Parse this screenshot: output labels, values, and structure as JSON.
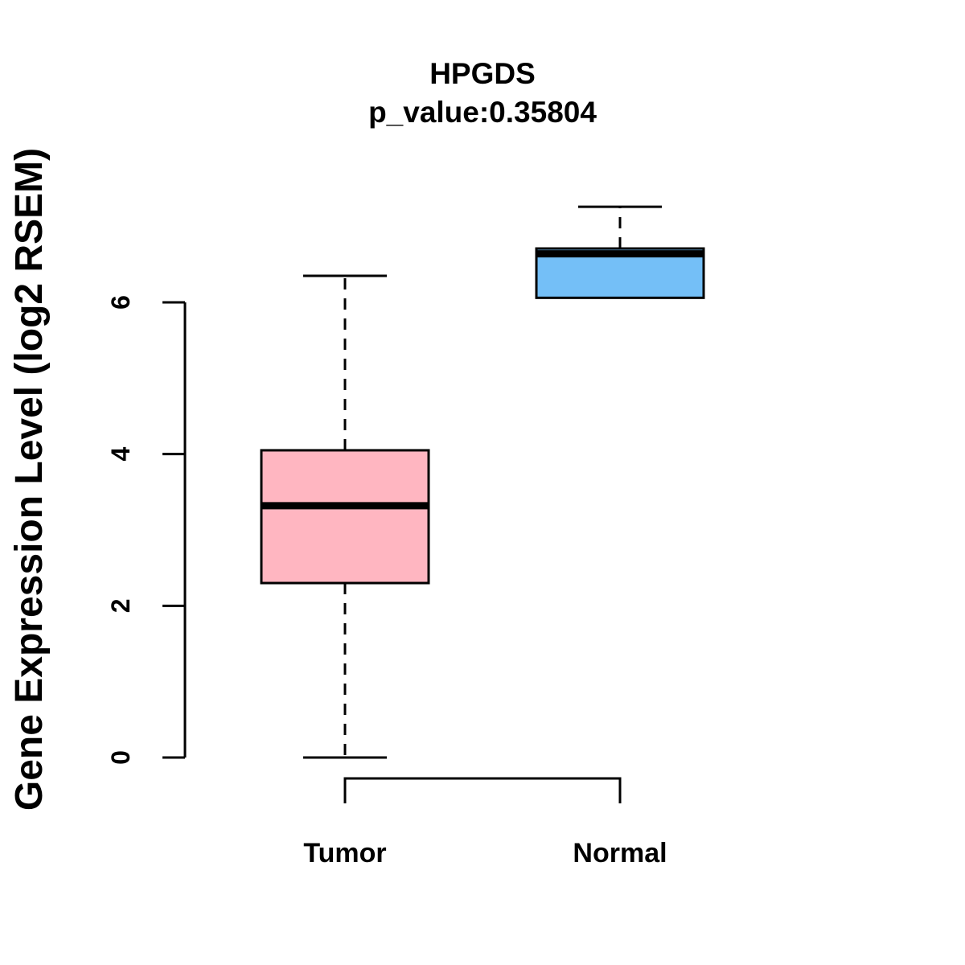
{
  "chart_data": {
    "type": "boxplot",
    "title": "HPGDS",
    "subtitle": "p_value:0.35804",
    "ylabel": "Gene Expression Level (log2 RSEM)",
    "xlabel": "",
    "categories": [
      "Tumor",
      "Normal"
    ],
    "yticks": [
      0,
      2,
      4,
      6
    ],
    "ylim": [
      0,
      7.3
    ],
    "grid": false,
    "legend": "none",
    "series": [
      {
        "name": "Tumor",
        "lower_whisker": 0,
        "q1": 2.3,
        "median": 3.32,
        "q3": 4.05,
        "upper_whisker": 6.35,
        "fill": "#FFB6C1"
      },
      {
        "name": "Normal",
        "lower_whisker": 6.06,
        "q1": 6.06,
        "median": 6.64,
        "q3": 6.71,
        "upper_whisker": 7.26,
        "fill": "#74BFF7"
      }
    ],
    "colors": {
      "tumor_fill": "#FFB6C1",
      "normal_fill": "#74BFF7",
      "stroke": "#000000",
      "background": "#FFFFFF"
    }
  }
}
